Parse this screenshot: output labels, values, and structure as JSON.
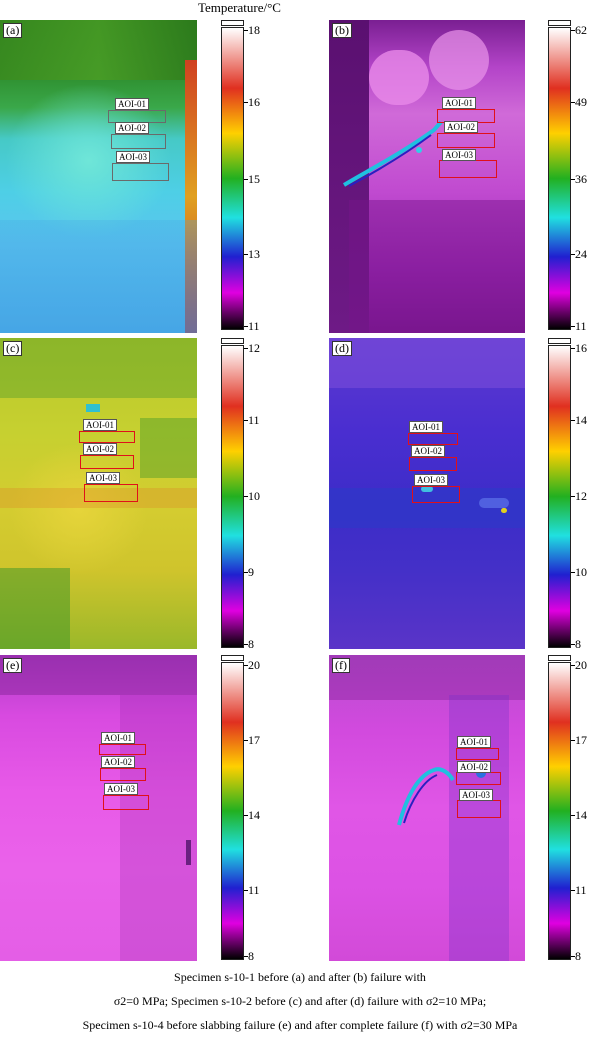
{
  "header": {
    "colorbar_title": "Temperature/°C"
  },
  "panels": [
    {
      "letter": "(a)",
      "aois": [
        "AOI-01",
        "AOI-02",
        "AOI-03"
      ],
      "scale_ticks": [
        "18",
        "16",
        "15",
        "13",
        "11"
      ]
    },
    {
      "letter": "(b)",
      "aois": [
        "AOI-01",
        "AOI-02",
        "AOI-03"
      ],
      "scale_ticks": [
        "62",
        "49",
        "36",
        "24",
        "11"
      ]
    },
    {
      "letter": "(c)",
      "aois": [
        "AOI-01",
        "AOI-02",
        "AOI-03"
      ],
      "scale_ticks": [
        "12",
        "11",
        "10",
        "9",
        "8"
      ]
    },
    {
      "letter": "(d)",
      "aois": [
        "AOI-01",
        "AOI-02",
        "AOI-03"
      ],
      "scale_ticks": [
        "16",
        "14",
        "12",
        "10",
        "8"
      ]
    },
    {
      "letter": "(e)",
      "aois": [
        "AOI-01",
        "AOI-02",
        "AOI-03"
      ],
      "scale_ticks": [
        "20",
        "17",
        "14",
        "11",
        "8"
      ]
    },
    {
      "letter": "(f)",
      "aois": [
        "AOI-01",
        "AOI-02",
        "AOI-03"
      ],
      "scale_ticks": [
        "20",
        "17",
        "14",
        "11",
        "8"
      ]
    }
  ],
  "caption": {
    "line1": "Specimen s-10-1 before (a) and after (b) failure with",
    "line2": "σ2=0 MPa; Specimen s-10-2 before (c) and after (d) failure with σ2=10 MPa;",
    "line3": "Specimen s-10-4 before slabbing failure (e) and after complete failure (f) with σ2=30 MPa"
  },
  "colors": {
    "scale_gradient": [
      "#ffffff",
      "#e03020",
      "#ffd000",
      "#22b020",
      "#20e0e0",
      "#2020d0",
      "#e000e0",
      "#000000"
    ]
  }
}
